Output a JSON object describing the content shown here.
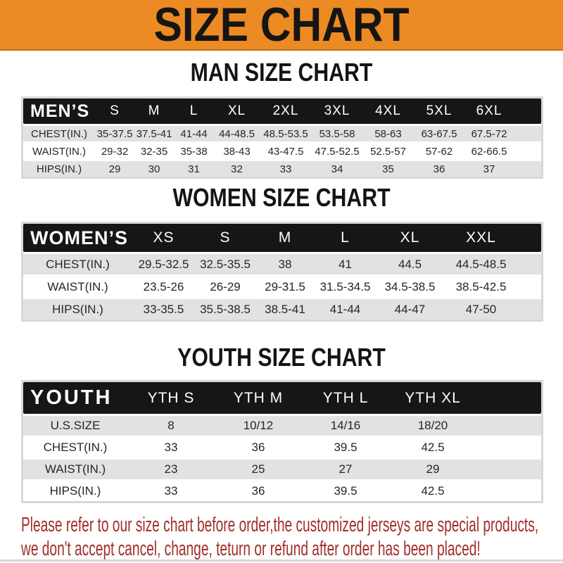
{
  "banner": {
    "title": "SIZE CHART",
    "bg_color": "#EC8A23",
    "text_color": "#151515"
  },
  "table_colors": {
    "header_bg": "#161616",
    "header_text": "#FFFFFF",
    "row_alt_bg": "#E2E2E2"
  },
  "sections": [
    {
      "id": "men",
      "title": "MAN SIZE CHART",
      "header_label": "MEN’S",
      "columns": [
        "S",
        "M",
        "L",
        "XL",
        "2XL",
        "3XL",
        "4XL",
        "5XL",
        "6XL"
      ],
      "rows": [
        {
          "label": "CHEST(IN.)",
          "values": [
            "35-37.5",
            "37.5-41",
            "41-44",
            "44-48.5",
            "48.5-53.5",
            "53.5-58",
            "58-63",
            "63-67.5",
            "67.5-72"
          ]
        },
        {
          "label": "WAIST(IN.)",
          "values": [
            "29-32",
            "32-35",
            "35-38",
            "38-43",
            "43-47.5",
            "47.5-52.5",
            "52.5-57",
            "57-62",
            "62-66.5"
          ]
        },
        {
          "label": "HIPS(IN.)",
          "values": [
            "29",
            "30",
            "31",
            "32",
            "33",
            "34",
            "35",
            "36",
            "37"
          ]
        }
      ]
    },
    {
      "id": "women",
      "title": "WOMEN SIZE CHART",
      "header_label": "WOMEN’S",
      "columns": [
        "XS",
        "S",
        "M",
        "L",
        "XL",
        "XXL"
      ],
      "rows": [
        {
          "label": "CHEST(IN.)",
          "values": [
            "29.5-32.5",
            "32.5-35.5",
            "38",
            "41",
            "44.5",
            "44.5-48.5"
          ]
        },
        {
          "label": "WAIST(IN.)",
          "values": [
            "23.5-26",
            "26-29",
            "29-31.5",
            "31.5-34.5",
            "34.5-38.5",
            "38.5-42.5"
          ]
        },
        {
          "label": "HIPS(IN.)",
          "values": [
            "33-35.5",
            "35.5-38.5",
            "38.5-41",
            "41-44",
            "44-47",
            "47-50"
          ]
        }
      ]
    },
    {
      "id": "youth",
      "title": "YOUTH SIZE CHART",
      "header_label": "YOUTH",
      "columns": [
        "YTH S",
        "YTH M",
        "YTH L",
        "YTH XL"
      ],
      "rows": [
        {
          "label": "U.S.SIZE",
          "values": [
            "8",
            "10/12",
            "14/16",
            "18/20"
          ]
        },
        {
          "label": "CHEST(IN.)",
          "values": [
            "33",
            "36",
            "39.5",
            "42.5"
          ]
        },
        {
          "label": "WAIST(IN.)",
          "values": [
            "23",
            "25",
            "27",
            "29"
          ]
        },
        {
          "label": "HIPS(IN.)",
          "values": [
            "33",
            "36",
            "39.5",
            "42.5"
          ]
        }
      ]
    }
  ],
  "footer": {
    "line1": "Please refer to our size chart before order,the customized jerseys are special products,",
    "line2": "we don't accept cancel, change, teturn or refund after order has been placed!",
    "text_color": "#A02E2A"
  }
}
